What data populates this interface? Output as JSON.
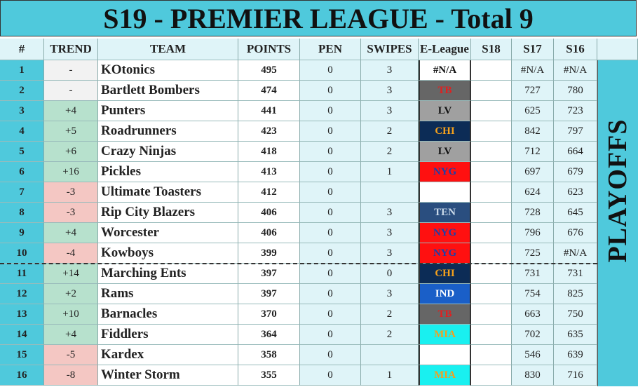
{
  "table": {
    "title": "S19 - PREMIER LEAGUE - Total 9",
    "columns": [
      "#",
      "TREND",
      "TEAM",
      "POINTS",
      "PEN",
      "SWIPES",
      "E-League",
      "S18",
      "S17",
      "S16"
    ],
    "side_label": "PLAYOFFS",
    "rows": [
      [
        1,
        "-",
        "KOtonics",
        495,
        0,
        3,
        "#N/A",
        null,
        "#N/A",
        "#N/A"
      ],
      [
        2,
        "-",
        "Bartlett Bombers",
        474,
        0,
        3,
        "TB",
        null,
        727,
        780
      ],
      [
        3,
        "+4",
        "Punters",
        441,
        0,
        3,
        "LV",
        null,
        625,
        723
      ],
      [
        4,
        "+5",
        "Roadrunners",
        423,
        0,
        2,
        "CHI",
        null,
        842,
        797
      ],
      [
        5,
        "+6",
        "Crazy Ninjas",
        418,
        0,
        2,
        "LV",
        null,
        712,
        664
      ],
      [
        6,
        "+16",
        "Pickles",
        413,
        0,
        1,
        "NYG",
        null,
        697,
        679
      ],
      [
        7,
        "-3",
        "Ultimate Toasters",
        412,
        0,
        null,
        null,
        null,
        624,
        623
      ],
      [
        8,
        "-3",
        "Rip City Blazers",
        406,
        0,
        3,
        "TEN",
        null,
        728,
        645
      ],
      [
        9,
        "+4",
        "Worcester",
        406,
        0,
        3,
        "NYG",
        null,
        796,
        676
      ],
      [
        10,
        "-4",
        "Kowboys",
        399,
        0,
        3,
        "NYG",
        null,
        725,
        "#N/A"
      ],
      [
        11,
        "+14",
        "Marching Ents",
        397,
        0,
        0,
        "CHI",
        null,
        731,
        731
      ],
      [
        12,
        "+2",
        "Rams",
        397,
        0,
        3,
        "IND",
        null,
        754,
        825
      ],
      [
        13,
        "+10",
        "Barnacles",
        370,
        0,
        2,
        "TB",
        null,
        663,
        750
      ],
      [
        14,
        "+4",
        "Fiddlers",
        364,
        0,
        2,
        "MIA",
        null,
        702,
        635
      ],
      [
        15,
        "-5",
        "Kardex",
        358,
        0,
        null,
        null,
        null,
        546,
        639
      ],
      [
        16,
        "-8",
        "Winter Storm",
        355,
        0,
        1,
        "MIA",
        null,
        830,
        716
      ]
    ],
    "eleague_colors": [
      {
        "bg": "#ffffff",
        "fg": "#111111"
      },
      {
        "bg": "#666666",
        "fg": "#e02020"
      },
      {
        "bg": "#a0a0a0",
        "fg": "#111111"
      },
      {
        "bg": "#0c2c56",
        "fg": "#f7a21b"
      },
      {
        "bg": "#a0a0a0",
        "fg": "#111111"
      },
      {
        "bg": "#ff1010",
        "fg": "#1f3fa8"
      },
      {
        "bg": "#ffffff",
        "fg": "#111111"
      },
      {
        "bg": "#2a4e7f",
        "fg": "#c8d8e8"
      },
      {
        "bg": "#ff1010",
        "fg": "#1f3fa8"
      },
      {
        "bg": "#ff1010",
        "fg": "#1f3fa8"
      },
      {
        "bg": "#0c2c56",
        "fg": "#f7a21b"
      },
      {
        "bg": "#1a5fc8",
        "fg": "#ffffff"
      },
      {
        "bg": "#666666",
        "fg": "#e02020"
      },
      {
        "bg": "#19f0f0",
        "fg": "#f0a020"
      },
      {
        "bg": "#ffffff",
        "fg": "#111111"
      },
      {
        "bg": "#19f0f0",
        "fg": "#f0a020"
      }
    ]
  }
}
